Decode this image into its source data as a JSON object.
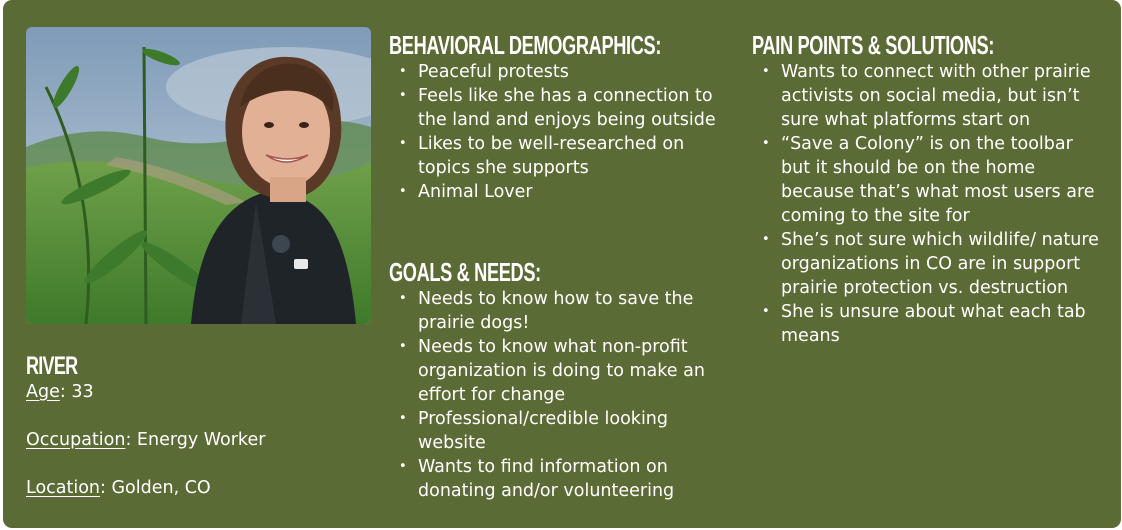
{
  "persona": {
    "name": "River",
    "photo_alt": "Portrait photo",
    "facts": [
      {
        "label": "Age",
        "value": ": 33"
      },
      {
        "label": "Occupation",
        "value": ": Energy Worker"
      },
      {
        "label": "Location",
        "value": ": Golden, CO"
      }
    ]
  },
  "behavioral": {
    "heading": "Behavioral Demographics:",
    "items": [
      "Peaceful protests",
      "Feels like she has a connection to the land and enjoys being outside",
      "Likes to be well-researched on topics she supports",
      "Animal Lover"
    ]
  },
  "goals": {
    "heading": "Goals & Needs:",
    "items": [
      "Needs to know how to save the prairie dogs!",
      "Needs to know what non-profit organization is doing to make an effort for change",
      "Professional/credible looking website",
      "Wants to find information on donating and/or volunteering"
    ]
  },
  "pain_points": {
    "heading": "Pain Points & Solutions:",
    "items": [
      "Wants to connect with other prairie activists on social media, but isn’t sure what platforms start on",
      "“Save a Colony” is on the toolbar but it should be on the home because that’s what most users are coming to the site for",
      "She’s not sure which wildlife/ nature organizations in CO are in support prairie protection vs. destruction",
      "She is unsure about what each tab means"
    ]
  },
  "bullet_char": "•",
  "colors": {
    "card_background": "#5b6b36",
    "text": "#ffffff"
  }
}
